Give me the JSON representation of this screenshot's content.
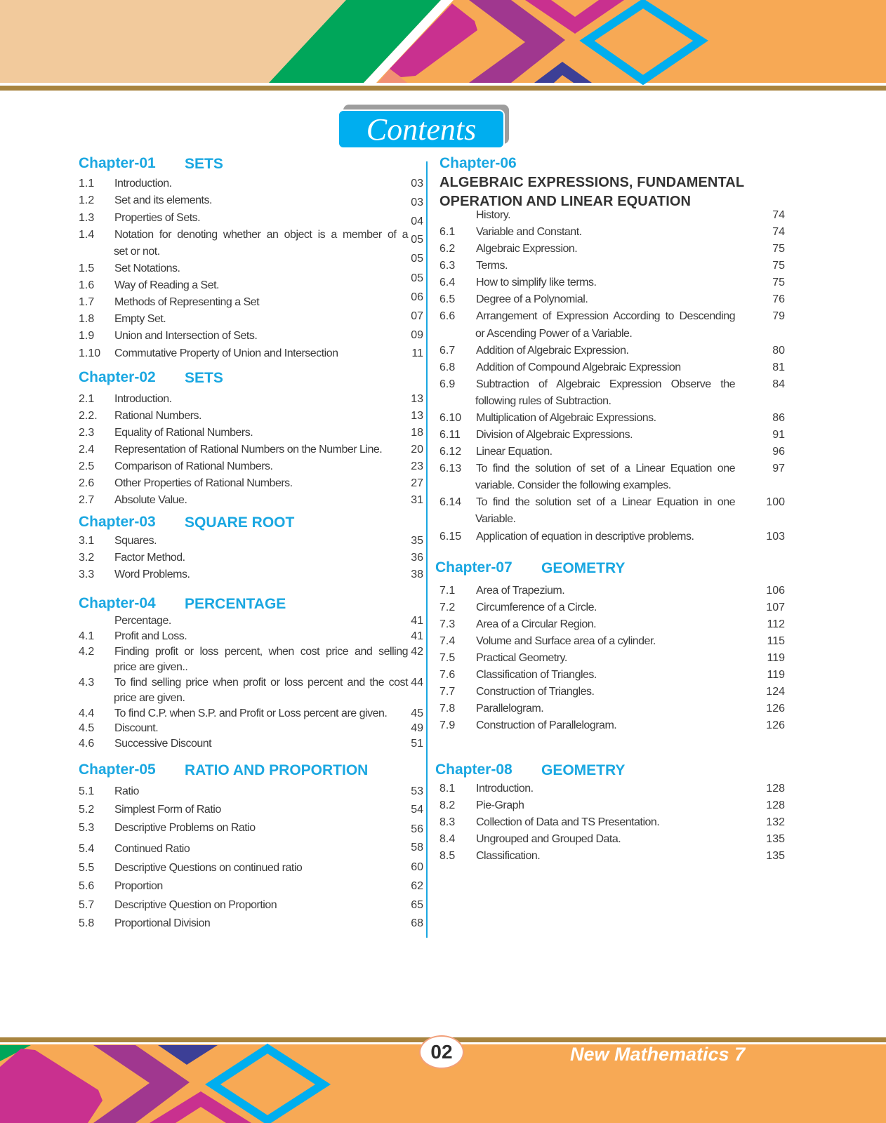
{
  "colors": {
    "accent": "#1aa7e1",
    "peach": "#f2ca9c",
    "orange": "#f7a955",
    "green": "#00a65a",
    "magenta": "#c9308f",
    "purple": "#a0378f",
    "blue": "#00aeef",
    "navy": "#3c3f96",
    "brown": "#a8843f"
  },
  "header": {
    "title": "Contents"
  },
  "footer": {
    "page_number": "02",
    "book_title": "New Mathematics 7"
  },
  "chapters": [
    {
      "label": "Chapter-01",
      "title": "SETS",
      "items": [
        {
          "num": "1.1",
          "text": [
            "Introduction."
          ],
          "page": "03"
        },
        {
          "num": "1.2",
          "text": [
            "Set and its elements."
          ],
          "page": "03"
        },
        {
          "num": "1.3",
          "text": [
            "Properties of Sets."
          ],
          "page": "04"
        },
        {
          "num": "1.4",
          "text": [
            "Notation for denoting whether an object is a member of a",
            "set or not."
          ],
          "page": "05"
        },
        {
          "num": "1.5",
          "text": [
            "Set Notations."
          ],
          "page": "05"
        },
        {
          "num": "1.6",
          "text": [
            "Way of Reading a Set."
          ],
          "page": "05"
        },
        {
          "num": "1.7",
          "text": [
            "Methods of Representing a Set"
          ],
          "page": "06"
        },
        {
          "num": "1.8",
          "text": [
            "Empty Set."
          ],
          "page": "07"
        },
        {
          "num": "1.9",
          "text": [
            "Union and Intersection of Sets."
          ],
          "page": "09"
        },
        {
          "num": "1.10",
          "text": [
            "Commutative Property of Union and Intersection"
          ],
          "page": "11"
        }
      ]
    },
    {
      "label": "Chapter-02",
      "title": "SETS",
      "items": [
        {
          "num": "2.1",
          "text": [
            "Introduction."
          ],
          "page": "13"
        },
        {
          "num": "2.2.",
          "text": [
            "Rational Numbers."
          ],
          "page": "13"
        },
        {
          "num": "2.3",
          "text": [
            "Equality of Rational Numbers."
          ],
          "page": "18"
        },
        {
          "num": "2.4",
          "text": [
            "Representation of Rational Numbers on the Number Line."
          ],
          "page": "20"
        },
        {
          "num": "2.5",
          "text": [
            "Comparison of Rational Numbers."
          ],
          "page": "23"
        },
        {
          "num": "2.6",
          "text": [
            "Other Properties of Rational Numbers."
          ],
          "page": "27"
        },
        {
          "num": "2.7",
          "text": [
            "Absolute Value."
          ],
          "page": "31"
        }
      ]
    },
    {
      "label": "Chapter-03",
      "title": "SQUARE ROOT",
      "items": [
        {
          "num": "3.1",
          "text": [
            "Squares."
          ],
          "page": "35"
        },
        {
          "num": "3.2",
          "text": [
            "Factor Method."
          ],
          "page": "36"
        },
        {
          "num": "3.3",
          "text": [
            "Word Problems."
          ],
          "page": "38"
        }
      ]
    },
    {
      "label": "Chapter-04",
      "title": "PERCENTAGE",
      "items": [
        {
          "num": "",
          "text": [
            "Percentage."
          ],
          "page": "41"
        },
        {
          "num": "4.1",
          "text": [
            "Profit and Loss."
          ],
          "page": "41"
        },
        {
          "num": "4.2",
          "text": [
            "Finding profit or loss percent, when cost price and selling",
            "price are given.."
          ],
          "page": "42"
        },
        {
          "num": "4.3",
          "text": [
            "To find selling price when profit or loss percent and the cost",
            "price are given."
          ],
          "page": "44"
        },
        {
          "num": "4.4",
          "text": [
            "To find C.P. when S.P. and Profit or Loss percent are given."
          ],
          "page": "45"
        },
        {
          "num": "4.5",
          "text": [
            "Discount."
          ],
          "page": "49"
        },
        {
          "num": "4.6",
          "text": [
            "Successive Discount"
          ],
          "page": "51"
        }
      ]
    },
    {
      "label": "Chapter-05",
      "title": "RATIO AND PROPORTION",
      "items": [
        {
          "num": "5.1",
          "text": [
            "Ratio"
          ],
          "page": "53"
        },
        {
          "num": "5.2",
          "text": [
            "Simplest Form of Ratio"
          ],
          "page": "54"
        },
        {
          "num": "5.3",
          "text": [
            "Descriptive Problems on Ratio"
          ],
          "page": "56"
        },
        {
          "num": "5.4",
          "text": [
            "Continued Ratio"
          ],
          "page": "58"
        },
        {
          "num": "5.5",
          "text": [
            "Descriptive Questions on continued ratio"
          ],
          "page": "60"
        },
        {
          "num": "5.6",
          "text": [
            "Proportion"
          ],
          "page": "62"
        },
        {
          "num": "5.7",
          "text": [
            "Descriptive Question on Proportion"
          ],
          "page": "65"
        },
        {
          "num": "5.8",
          "text": [
            "Proportional Division"
          ],
          "page": "68"
        }
      ]
    },
    {
      "label": "Chapter-06",
      "title": "",
      "subtitle": [
        "ALGEBRAIC EXPRESSIONS, FUNDAMENTAL",
        "OPERATION AND LINEAR EQUATION"
      ],
      "items": [
        {
          "num": "",
          "text": [
            "History."
          ],
          "page": "74"
        },
        {
          "num": "6.1",
          "text": [
            "Variable and Constant."
          ],
          "page": "74"
        },
        {
          "num": "6.2",
          "text": [
            "Algebraic Expression."
          ],
          "page": "75"
        },
        {
          "num": "6.3",
          "text": [
            "Terms."
          ],
          "page": "75"
        },
        {
          "num": "6.4",
          "text": [
            "How to simplify like terms."
          ],
          "page": "75"
        },
        {
          "num": "6.5",
          "text": [
            "Degree of a Polynomial."
          ],
          "page": "76"
        },
        {
          "num": "6.6",
          "text": [
            "Arrangement of Expression According to Descending",
            "or Ascending Power of a Variable."
          ],
          "page": "79"
        },
        {
          "num": "6.7",
          "text": [
            "Addition of Algebraic Expression."
          ],
          "page": "80"
        },
        {
          "num": "6.8",
          "text": [
            "Addition of Compound Algebraic Expression"
          ],
          "page": "81"
        },
        {
          "num": "6.9",
          "text": [
            "Subtraction of Algebraic Expression Observe the",
            "following rules of Subtraction."
          ],
          "page": "84"
        },
        {
          "num": "6.10",
          "text": [
            "Multiplication of Algebraic Expressions."
          ],
          "page": "86"
        },
        {
          "num": "6.11",
          "text": [
            "Division of Algebraic Expressions."
          ],
          "page": "91"
        },
        {
          "num": "6.12",
          "text": [
            "Linear Equation."
          ],
          "page": "96"
        },
        {
          "num": "6.13",
          "text": [
            "To find the solution of set of a Linear Equation one",
            "variable. Consider the following examples."
          ],
          "page": "97"
        },
        {
          "num": "6.14",
          "text": [
            "To find the solution set of a Linear Equation in one",
            "Variable."
          ],
          "page": "100"
        },
        {
          "num": "6.15",
          "text": [
            "Application of equation in descriptive problems."
          ],
          "page": "103"
        }
      ]
    },
    {
      "label": "Chapter-07",
      "title": "GEOMETRY",
      "items": [
        {
          "num": "7.1",
          "text": [
            "Area of Trapezium."
          ],
          "page": "106"
        },
        {
          "num": "7.2",
          "text": [
            "Circumference of a Circle."
          ],
          "page": "107"
        },
        {
          "num": "7.3",
          "text": [
            "Area of a Circular Region."
          ],
          "page": "112"
        },
        {
          "num": "7.4",
          "text": [
            "Volume and Surface area of a cylinder."
          ],
          "page": "115"
        },
        {
          "num": "7.5",
          "text": [
            "Practical Geometry."
          ],
          "page": "119"
        },
        {
          "num": "7.6",
          "text": [
            "Classification of Triangles."
          ],
          "page": "119"
        },
        {
          "num": "7.7",
          "text": [
            "Construction of Triangles."
          ],
          "page": "124"
        },
        {
          "num": "7.8",
          "text": [
            "Parallelogram."
          ],
          "page": "126"
        },
        {
          "num": "7.9",
          "text": [
            "Construction of Parallelogram."
          ],
          "page": "126"
        }
      ]
    },
    {
      "label": "Chapter-08",
      "title": "GEOMETRY",
      "items": [
        {
          "num": "8.1",
          "text": [
            "Introduction."
          ],
          "page": "128"
        },
        {
          "num": "8.2",
          "text": [
            "Pie-Graph"
          ],
          "page": "128"
        },
        {
          "num": "8.3",
          "text": [
            "Collection of Data and TS Presentation."
          ],
          "page": "132"
        },
        {
          "num": "8.4",
          "text": [
            "Ungrouped and Grouped Data."
          ],
          "page": "135"
        },
        {
          "num": "8.5",
          "text": [
            "Classification."
          ],
          "page": "135"
        }
      ]
    }
  ]
}
